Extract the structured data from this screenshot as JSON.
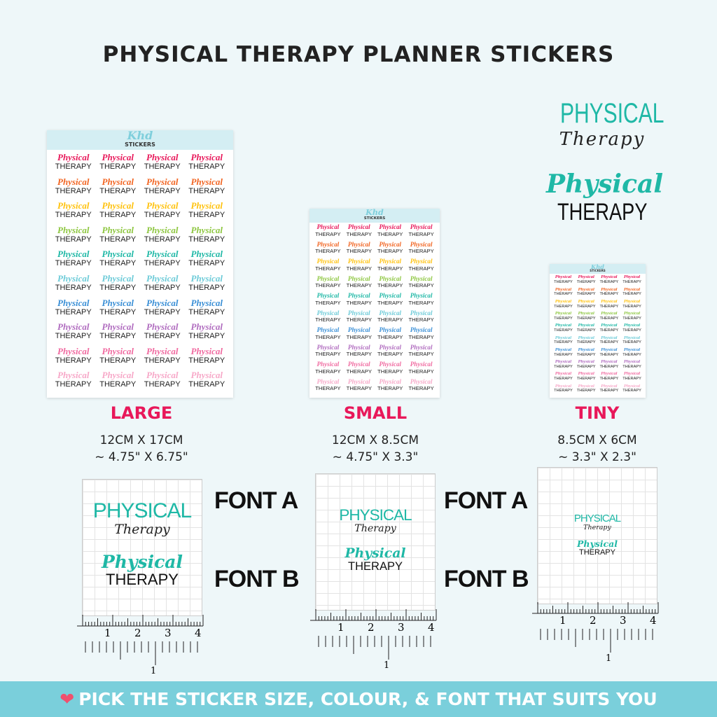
{
  "title": "PHYSICAL THERAPY PLANNER STICKERS",
  "sticker": {
    "line1": "Physical",
    "line2": "THERAPY",
    "brand_logo": "Khd",
    "brand_label": "STICKERS",
    "row_colors": [
      "#e8185a",
      "#f26522",
      "#ffc20e",
      "#8dc63f",
      "#1fb8a6",
      "#6dcbd8",
      "#3a8fd6",
      "#b06cbf",
      "#f06aa0",
      "#f7a8c8"
    ]
  },
  "examples": {
    "font_a_line1": "PHYSICAL",
    "font_a_line2": "Therapy",
    "font_b_line1": "Physical",
    "font_b_line2": "THERAPY",
    "accent": "#1fb8a6"
  },
  "sizes": [
    {
      "label": "LARGE",
      "dim_cm": "12CM X 17CM",
      "dim_in": "~ 4.75\" X 6.75\""
    },
    {
      "label": "SMALL",
      "dim_cm": "12CM X 8.5CM",
      "dim_in": "~ 4.75\" X 3.3\""
    },
    {
      "label": "TINY",
      "dim_cm": "8.5CM X 6CM",
      "dim_in": "~ 3.3\" X 2.3\""
    }
  ],
  "font_labels": {
    "a": "FONT A",
    "b": "FONT B"
  },
  "ruler": {
    "inch_ticks": [
      "1",
      "2",
      "3",
      "4"
    ],
    "cm_tick": "1"
  },
  "banner": {
    "icon": "heart-sparkle-icon",
    "text": "PICK THE STICKER SIZE, COLOUR, & FONT THAT SUITS YOU"
  }
}
